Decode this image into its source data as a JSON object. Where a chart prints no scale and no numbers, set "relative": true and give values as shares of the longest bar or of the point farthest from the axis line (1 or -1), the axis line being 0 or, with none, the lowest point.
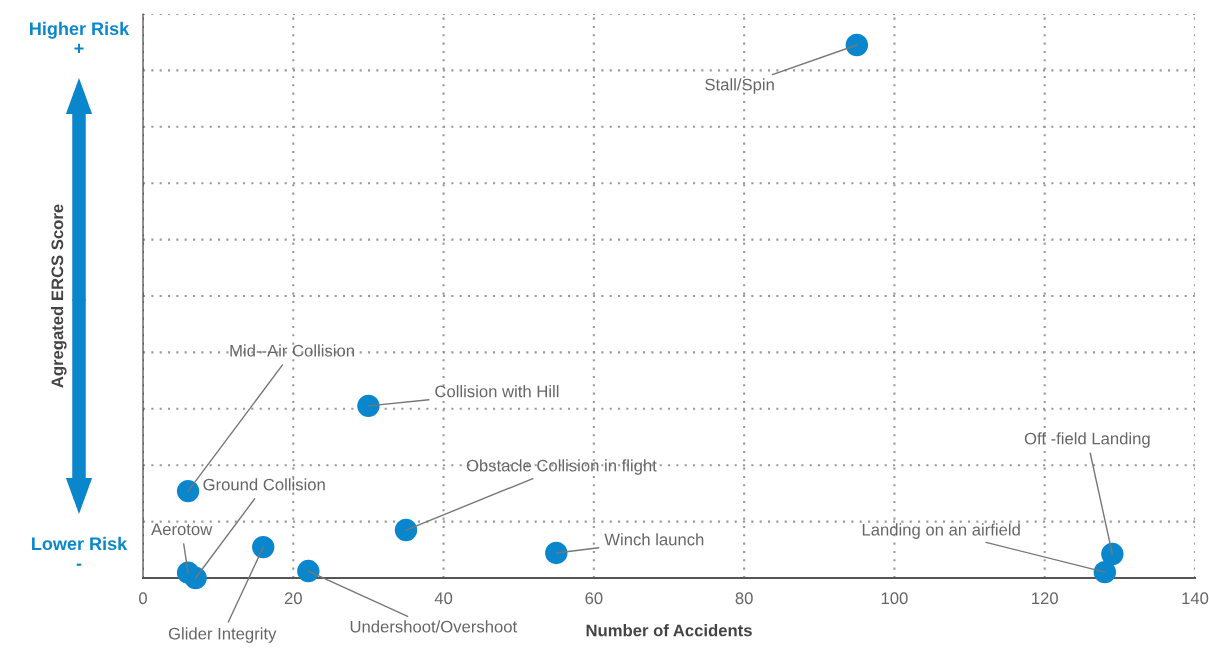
{
  "chart_data": {
    "type": "scatter",
    "relative": true,
    "xlabel": "Number of Accidents",
    "ylabel": "Agregated ERCS Score",
    "x": [
      95,
      6,
      7,
      6,
      16,
      22,
      30,
      35,
      55,
      129,
      128
    ],
    "series": [
      {
        "color": "#0a86cc",
        "values": [
          1,
          0.163,
          0.0,
          0.01,
          0.058,
          0.013,
          0.323,
          0.09,
          0.047,
          0.045,
          0.011
        ]
      }
    ],
    "xlim": [
      0,
      140
    ],
    "xticks": [
      0,
      20,
      40,
      60,
      80,
      100,
      120,
      140
    ],
    "grid": true,
    "marker": "circle",
    "annotations": [
      {
        "text": "Stall/Spin",
        "x": 95,
        "y": 1
      },
      {
        "text": "Mid--Air Collision",
        "x": 6,
        "y": 0.163
      },
      {
        "text": "Ground Collision",
        "x": 7,
        "y": 0.0
      },
      {
        "text": "Aerotow",
        "x": 6,
        "y": 0.01
      },
      {
        "text": "Glider Integrity",
        "x": 16,
        "y": 0.058
      },
      {
        "text": "Undershoot/Overshoot",
        "x": 22,
        "y": 0.013
      },
      {
        "text": "Collision with Hill",
        "x": 30,
        "y": 0.323
      },
      {
        "text": "Obstacle Collision in flight",
        "x": 35,
        "y": 0.09
      },
      {
        "text": "Winch launch",
        "x": 55,
        "y": 0.047
      },
      {
        "text": "Off -field Landing",
        "x": 129,
        "y": 0.045
      },
      {
        "text": "Landing on an airfield",
        "x": 128,
        "y": 0.011
      },
      "Higher Risk\n+",
      "Lower Risk\n-"
    ]
  }
}
